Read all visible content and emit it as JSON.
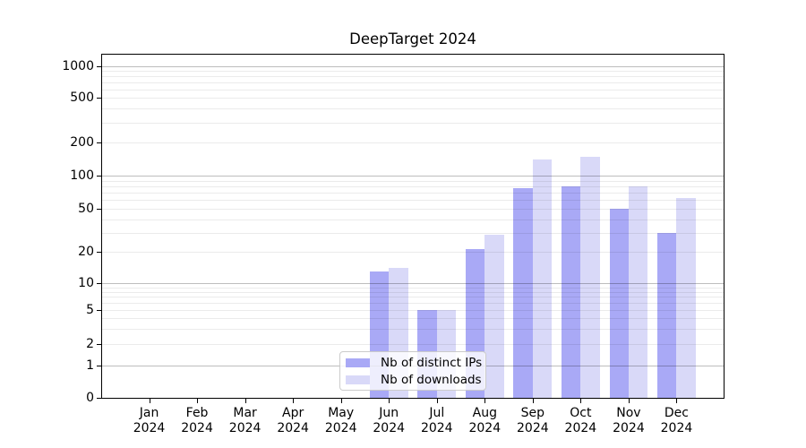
{
  "title": "DeepTarget 2024",
  "chart_data": {
    "type": "bar",
    "title": "DeepTarget 2024",
    "categories": [
      "Jan 2024",
      "Feb 2024",
      "Mar 2024",
      "Apr 2024",
      "May 2024",
      "Jun 2024",
      "Jul 2024",
      "Aug 2024",
      "Sep 2024",
      "Oct 2024",
      "Nov 2024",
      "Dec 2024"
    ],
    "series": [
      {
        "name": "Nb of distinct IPs",
        "key": "distinct-ips",
        "color": "#a9a9f6",
        "values": [
          0,
          0,
          0,
          0,
          0,
          13,
          5,
          21,
          77,
          80,
          50,
          30
        ]
      },
      {
        "name": "Nb of downloads",
        "key": "downloads",
        "color": "#d9d9f8",
        "values": [
          0,
          0,
          0,
          0,
          0,
          14,
          5,
          29,
          140,
          148,
          80,
          63
        ]
      }
    ],
    "yscale": "symlog",
    "ylim": [
      0,
      1300
    ],
    "yticks": [
      0,
      1,
      2,
      5,
      10,
      20,
      50,
      100,
      200,
      500,
      1000
    ],
    "grid_major": [
      1,
      10,
      100,
      1000
    ],
    "grid_minor": [
      2,
      3,
      4,
      5,
      6,
      7,
      8,
      9,
      20,
      30,
      40,
      50,
      60,
      70,
      80,
      90,
      200,
      300,
      400,
      500,
      600,
      700,
      800,
      900
    ],
    "xlabel": "",
    "ylabel": "",
    "grid": "both",
    "legend_position": "lower-center"
  },
  "legend": {
    "items": [
      {
        "label": "Nb of distinct IPs",
        "color": "#a9a9f6"
      },
      {
        "label": "Nb of downloads",
        "color": "#d9d9f8"
      }
    ]
  },
  "colors": {
    "background": "#ffffff",
    "axis": "#000000",
    "grid_major": "rgba(0,0,0,0.26)",
    "grid_minor": "rgba(0,0,0,0.08)",
    "legend_border": "#cbcbcb",
    "series_distinct_ips": "#a9a9f6",
    "series_downloads": "#d9d9f8"
  }
}
